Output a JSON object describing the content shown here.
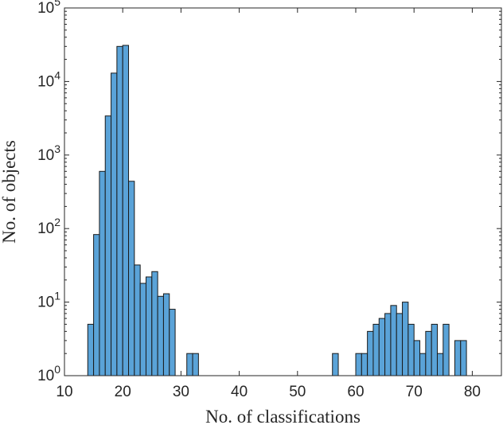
{
  "chart_data": {
    "type": "bar",
    "title": "",
    "xlabel": "No. of classifications",
    "ylabel": "No. of objects",
    "xlim": [
      10,
      85
    ],
    "ylim": [
      1,
      100000
    ],
    "yscale": "log",
    "bin_width": 1,
    "x_ticks": [
      10,
      20,
      30,
      40,
      50,
      60,
      70,
      80
    ],
    "y_ticks": [
      {
        "value": 1,
        "base": "10",
        "exp": "0"
      },
      {
        "value": 10,
        "base": "10",
        "exp": "1"
      },
      {
        "value": 100,
        "base": "10",
        "exp": "2"
      },
      {
        "value": 1000,
        "base": "10",
        "exp": "3"
      },
      {
        "value": 10000,
        "base": "10",
        "exp": "4"
      },
      {
        "value": 100000,
        "base": "10",
        "exp": "5"
      }
    ],
    "grid": false,
    "bar_color": "#5aa3d8",
    "bins": [
      {
        "x0": 14,
        "value": 5
      },
      {
        "x0": 15,
        "value": 83
      },
      {
        "x0": 16,
        "value": 600
      },
      {
        "x0": 17,
        "value": 3400
      },
      {
        "x0": 18,
        "value": 13000
      },
      {
        "x0": 19,
        "value": 30000
      },
      {
        "x0": 20,
        "value": 31000
      },
      {
        "x0": 21,
        "value": 440
      },
      {
        "x0": 22,
        "value": 32
      },
      {
        "x0": 23,
        "value": 18
      },
      {
        "x0": 24,
        "value": 22
      },
      {
        "x0": 25,
        "value": 26
      },
      {
        "x0": 26,
        "value": 12
      },
      {
        "x0": 27,
        "value": 13
      },
      {
        "x0": 28,
        "value": 8
      },
      {
        "x0": 31,
        "value": 2
      },
      {
        "x0": 32,
        "value": 2
      },
      {
        "x0": 56,
        "value": 2
      },
      {
        "x0": 60,
        "value": 2
      },
      {
        "x0": 61,
        "value": 2
      },
      {
        "x0": 62,
        "value": 4
      },
      {
        "x0": 63,
        "value": 5
      },
      {
        "x0": 64,
        "value": 6
      },
      {
        "x0": 65,
        "value": 7
      },
      {
        "x0": 66,
        "value": 9
      },
      {
        "x0": 67,
        "value": 7
      },
      {
        "x0": 68,
        "value": 10
      },
      {
        "x0": 69,
        "value": 5
      },
      {
        "x0": 70,
        "value": 3
      },
      {
        "x0": 71,
        "value": 2
      },
      {
        "x0": 72,
        "value": 4
      },
      {
        "x0": 73,
        "value": 5
      },
      {
        "x0": 74,
        "value": 2
      },
      {
        "x0": 75,
        "value": 5
      },
      {
        "x0": 77,
        "value": 3
      },
      {
        "x0": 78,
        "value": 3
      }
    ]
  }
}
